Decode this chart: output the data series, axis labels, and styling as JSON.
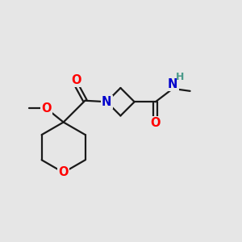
{
  "bg_color": "#e6e6e6",
  "bond_color": "#1a1a1a",
  "atom_colors": {
    "O": "#ff0000",
    "N": "#0000cc",
    "H": "#4a9a8a",
    "C": "#1a1a1a"
  },
  "font_size_atom": 10.5,
  "font_size_h": 9,
  "lw": 1.6
}
